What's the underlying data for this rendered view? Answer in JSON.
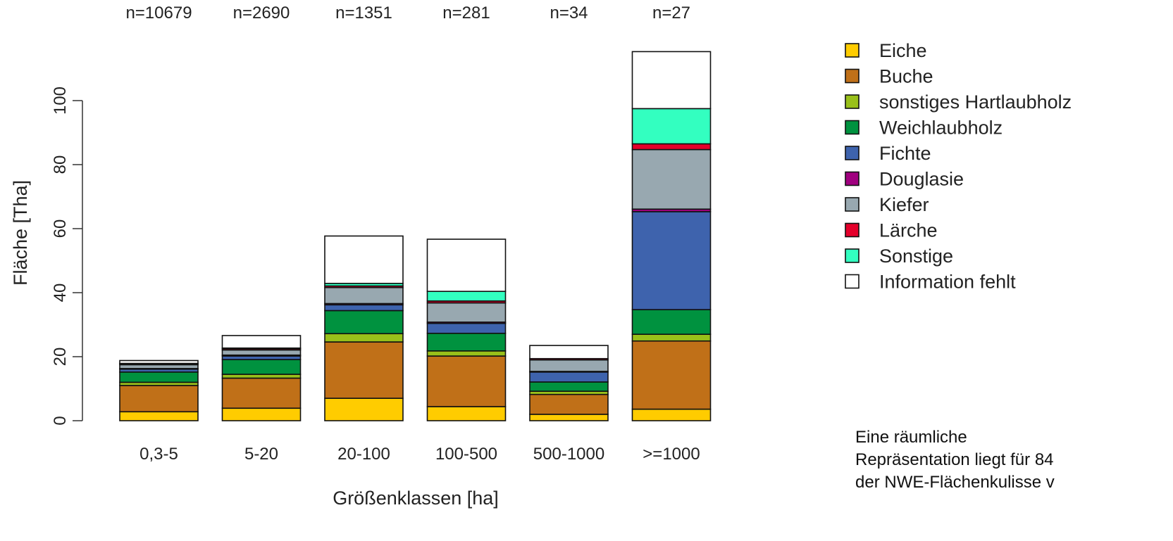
{
  "chart_data": {
    "type": "bar",
    "stacked": true,
    "categories": [
      "0,3-5",
      "5-20",
      "20-100",
      "100-500",
      "500-1000",
      ">=1000"
    ],
    "sample_sizes": [
      "n=10679",
      "n=2690",
      "n=1351",
      "n=281",
      "n=34",
      "n=27"
    ],
    "xlabel": "Größenklassen [ha]",
    "ylabel": "Fläche [Tha]",
    "ylim": [
      0,
      116
    ],
    "yticks": [
      0,
      20,
      40,
      60,
      80,
      100
    ],
    "grid": false,
    "legend_position": "right",
    "series": [
      {
        "name": "Eiche",
        "color": "#FFCC00",
        "values": [
          2.8,
          3.9,
          7.0,
          4.4,
          2.0,
          3.6
        ]
      },
      {
        "name": "Buche",
        "color": "#C07018",
        "values": [
          8.2,
          9.4,
          17.6,
          15.8,
          6.2,
          21.3
        ]
      },
      {
        "name": "sonstiges Hartlaubholz",
        "color": "#99C01A",
        "values": [
          1.0,
          1.2,
          2.6,
          1.6,
          1.0,
          2.1
        ]
      },
      {
        "name": "Weichlaubholz",
        "color": "#00923F",
        "values": [
          3.2,
          4.6,
          7.2,
          5.5,
          2.9,
          7.7
        ]
      },
      {
        "name": "Fichte",
        "color": "#3E63AD",
        "values": [
          0.9,
          1.1,
          1.8,
          3.1,
          3.1,
          30.6
        ]
      },
      {
        "name": "Douglasie",
        "color": "#A0007F",
        "values": [
          0.2,
          0.3,
          0.4,
          0.4,
          0.2,
          0.8
        ]
      },
      {
        "name": "Kiefer",
        "color": "#98A8B0",
        "values": [
          1.2,
          1.6,
          5.0,
          6.0,
          3.6,
          18.6
        ]
      },
      {
        "name": "Lärche",
        "color": "#E4002B",
        "values": [
          0.3,
          0.4,
          0.5,
          0.6,
          0.4,
          1.8
        ]
      },
      {
        "name": "Sonstige",
        "color": "#33FFC0",
        "values": [
          0.1,
          0.2,
          0.8,
          3.0,
          0.0,
          11.0
        ]
      },
      {
        "name": "Information fehlt",
        "color": "#FFFFFF",
        "values": [
          0.9,
          3.9,
          14.8,
          16.3,
          4.1,
          17.8
        ]
      }
    ]
  },
  "note": {
    "line1": "Eine räumliche",
    "line2": "Repräsentation liegt für 84",
    "line3": "der NWE-Flächenkulisse v"
  }
}
